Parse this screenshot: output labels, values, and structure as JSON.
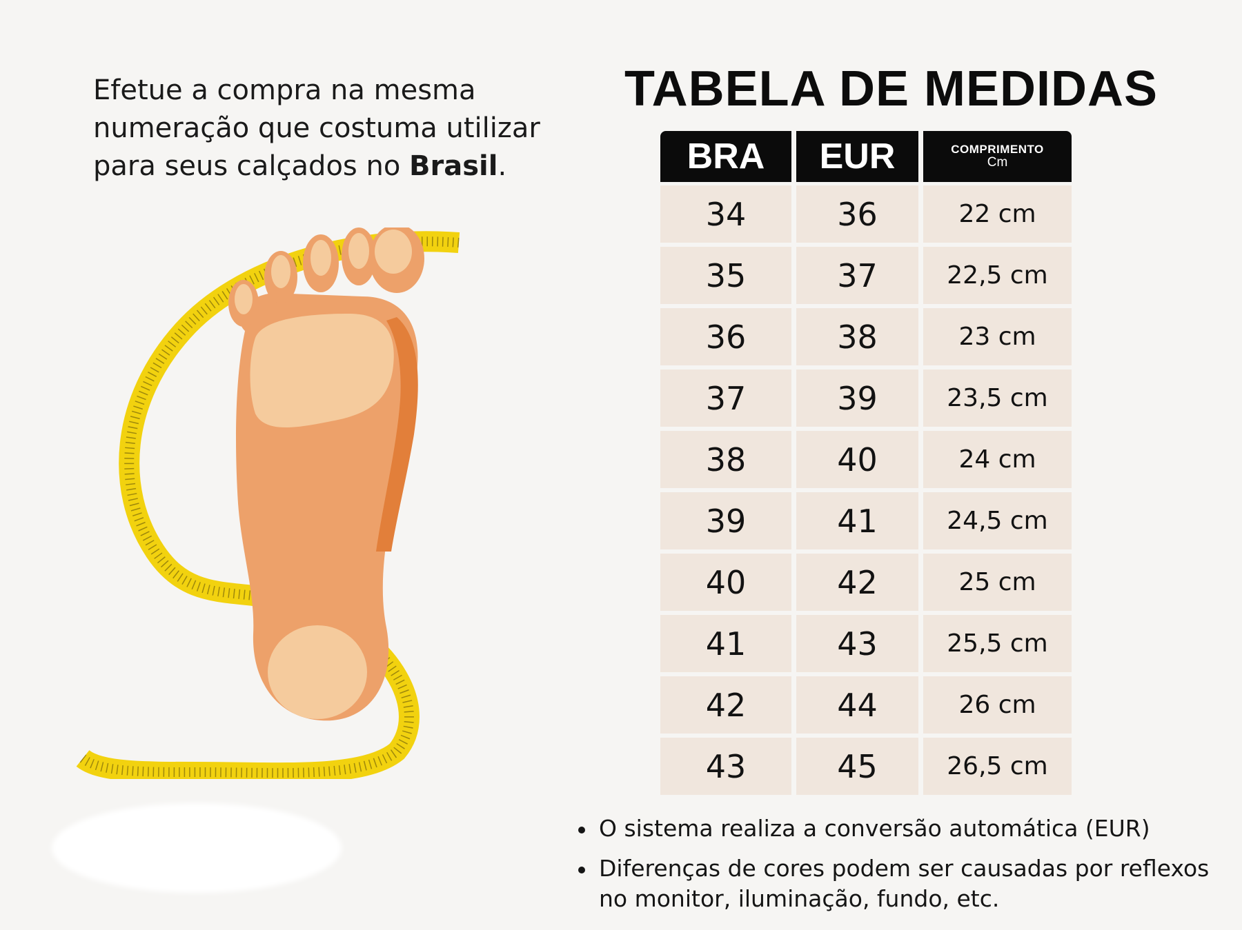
{
  "intro": {
    "text_before": "Efetue a compra na mesma numeração que costuma utilizar para seus calçados no ",
    "bold": "Brasil",
    "text_after": "."
  },
  "title": "TABELA DE MEDIDAS",
  "table": {
    "headers": {
      "bra": "BRA",
      "eur": "EUR",
      "length": "COMPRIMENTO",
      "length_unit": "Cm"
    },
    "rows": [
      {
        "bra": "34",
        "eur": "36",
        "cm": "22 cm"
      },
      {
        "bra": "35",
        "eur": "37",
        "cm": "22,5 cm"
      },
      {
        "bra": "36",
        "eur": "38",
        "cm": "23 cm"
      },
      {
        "bra": "37",
        "eur": "39",
        "cm": "23,5 cm"
      },
      {
        "bra": "38",
        "eur": "40",
        "cm": "24 cm"
      },
      {
        "bra": "39",
        "eur": "41",
        "cm": "24,5 cm"
      },
      {
        "bra": "40",
        "eur": "42",
        "cm": "25 cm"
      },
      {
        "bra": "41",
        "eur": "43",
        "cm": "25,5 cm"
      },
      {
        "bra": "42",
        "eur": "44",
        "cm": "26 cm"
      },
      {
        "bra": "43",
        "eur": "45",
        "cm": "26,5 cm"
      }
    ]
  },
  "notes": [
    "O sistema realiza a conversão automática (EUR)",
    "Diferenças de cores podem ser causadas por reflexos no monitor, iluminação, fundo, etc."
  ],
  "colors": {
    "header_bg": "#0b0b0b",
    "cell_bg": "#f0e6dd",
    "tape": "#f2d20f",
    "foot": "#eda16a"
  }
}
